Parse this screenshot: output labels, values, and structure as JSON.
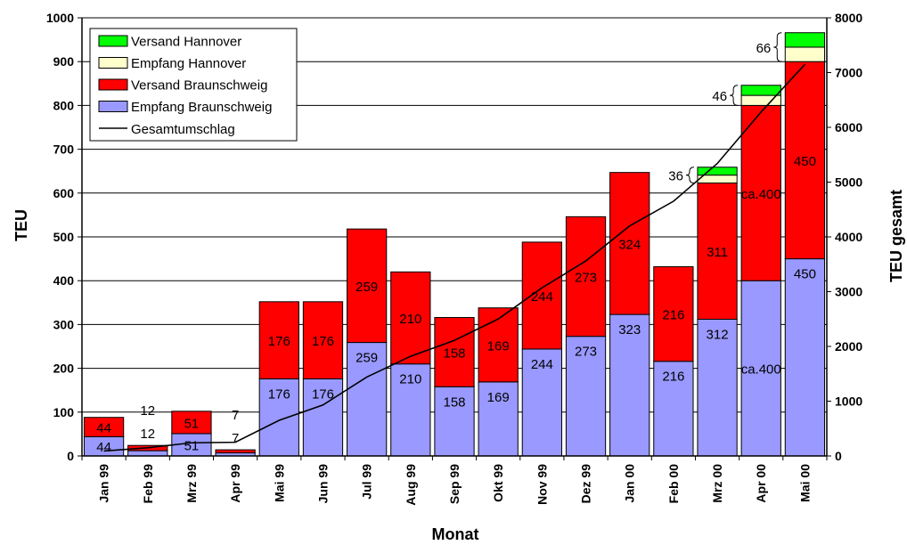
{
  "chart_data": {
    "type": "bar",
    "categories": [
      "Jan 99",
      "Feb 99",
      "Mrz 99",
      "Apr 99",
      "Mai 99",
      "Jun 99",
      "Jul 99",
      "Aug 99",
      "Sep 99",
      "Okt 99",
      "Nov 99",
      "Dez 99",
      "Jan 00",
      "Feb 00",
      "Mrz 00",
      "Apr 00",
      "Mai 00"
    ],
    "series": [
      {
        "name": "Empfang Braunschweig",
        "color": "#9999ff",
        "values": [
          44,
          12,
          51,
          7,
          176,
          176,
          259,
          210,
          158,
          169,
          244,
          273,
          323,
          216,
          312,
          400,
          450
        ]
      },
      {
        "name": "Versand Braunschweig",
        "color": "#ff0000",
        "values": [
          44,
          12,
          51,
          7,
          176,
          176,
          259,
          210,
          158,
          169,
          244,
          273,
          324,
          216,
          311,
          400,
          450
        ]
      },
      {
        "name": "Empfang Hannover",
        "color": "#ffffcc",
        "values": [
          0,
          0,
          0,
          0,
          0,
          0,
          0,
          0,
          0,
          0,
          0,
          0,
          0,
          0,
          18,
          23,
          33
        ]
      },
      {
        "name": "Versand Hannover",
        "color": "#00ff00",
        "values": [
          0,
          0,
          0,
          0,
          0,
          0,
          0,
          0,
          0,
          0,
          0,
          0,
          0,
          0,
          18,
          23,
          33
        ]
      }
    ],
    "line_series": {
      "name": "Gesamtumschlag",
      "color": "#000000",
      "axis": "right",
      "values": [
        90,
        150,
        240,
        250,
        650,
        930,
        1440,
        1820,
        2110,
        2500,
        3070,
        3560,
        4200,
        4650,
        5340,
        6280,
        7150
      ]
    },
    "bar_labels": {
      "Empfang Braunschweig": [
        "44",
        "12",
        "51",
        "7",
        "176",
        "176",
        "259",
        "210",
        "158",
        "169",
        "244",
        "273",
        "323",
        "216",
        "312",
        "ca.400",
        "450"
      ],
      "Versand Braunschweig": [
        "44",
        "12",
        "51",
        "7",
        "176",
        "176",
        "259",
        "210",
        "158",
        "169",
        "244",
        "273",
        "324",
        "216",
        "311",
        "ca.400",
        "450"
      ]
    },
    "hannover_annotations": [
      {
        "category": "Mrz 00",
        "label": "36"
      },
      {
        "category": "Apr 00",
        "label": "46"
      },
      {
        "category": "Mai 00",
        "label": "66"
      }
    ],
    "xlabel": "Monat",
    "ylabel": "TEU",
    "y2label": "TEU gesamt",
    "ylim": [
      0,
      1000
    ],
    "y2lim": [
      0,
      8000
    ],
    "yticks": [
      "0",
      "100",
      "200",
      "300",
      "400",
      "500",
      "600",
      "700",
      "800",
      "900",
      "1000"
    ],
    "y2ticks": [
      "0",
      "1000",
      "2000",
      "3000",
      "4000",
      "5000",
      "6000",
      "7000",
      "8000"
    ],
    "grid": true,
    "legend_position": "top-left"
  }
}
